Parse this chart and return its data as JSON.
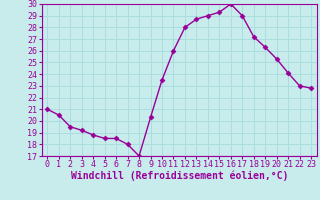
{
  "x": [
    0,
    1,
    2,
    3,
    4,
    5,
    6,
    7,
    8,
    9,
    10,
    11,
    12,
    13,
    14,
    15,
    16,
    17,
    18,
    19,
    20,
    21,
    22,
    23
  ],
  "y": [
    21,
    20.5,
    19.5,
    19.2,
    18.8,
    18.5,
    18.5,
    18.0,
    17.0,
    20.3,
    23.5,
    26.0,
    28.0,
    28.7,
    29.0,
    29.3,
    30.0,
    29.0,
    27.2,
    26.3,
    25.3,
    24.1,
    23.0,
    22.8
  ],
  "line_color": "#990099",
  "marker": "D",
  "marker_size": 2.5,
  "line_width": 1.0,
  "bg_color": "#c8ecec",
  "grid_color": "#aadddd",
  "xlabel": "Windchill (Refroidissement éolien,°C)",
  "xlabel_color": "#990099",
  "tick_color": "#990099",
  "xlabel_fontsize": 7.0,
  "tick_fontsize": 6.0,
  "ylim": [
    17,
    30
  ],
  "xlim": [
    -0.5,
    23.5
  ],
  "yticks": [
    17,
    18,
    19,
    20,
    21,
    22,
    23,
    24,
    25,
    26,
    27,
    28,
    29,
    30
  ],
  "xticks": [
    0,
    1,
    2,
    3,
    4,
    5,
    6,
    7,
    8,
    9,
    10,
    11,
    12,
    13,
    14,
    15,
    16,
    17,
    18,
    19,
    20,
    21,
    22,
    23
  ],
  "spine_color": "#990099"
}
